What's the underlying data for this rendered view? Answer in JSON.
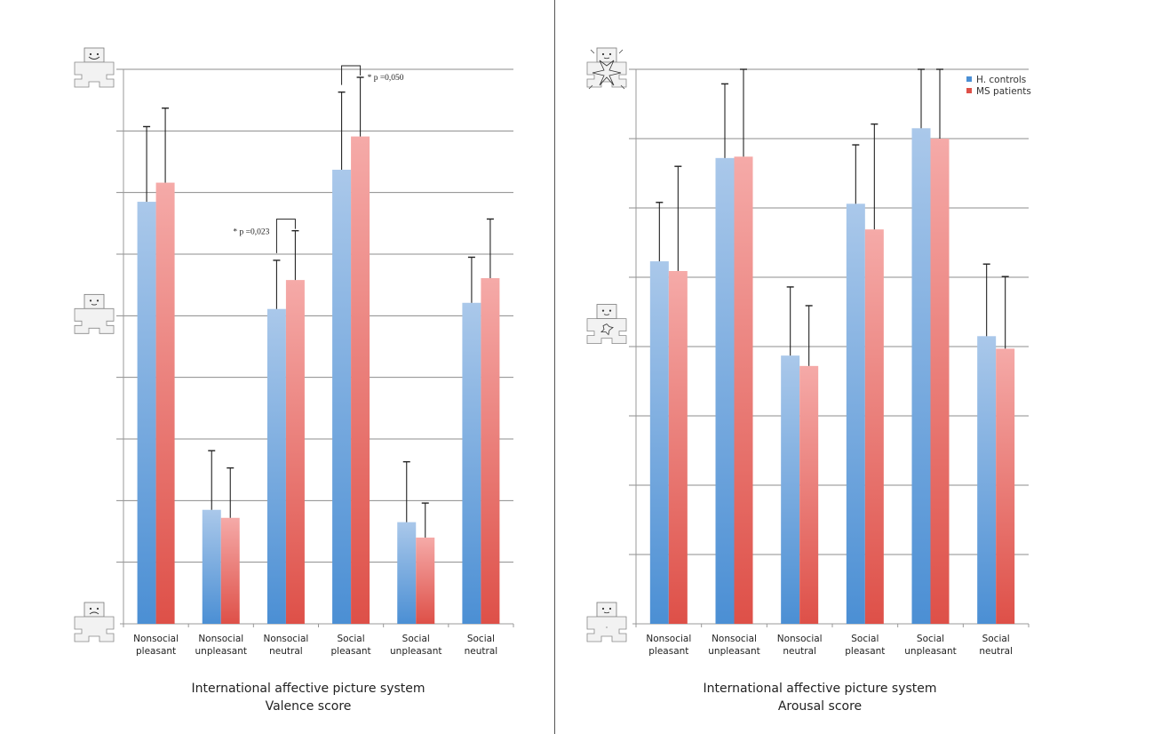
{
  "series_colors": {
    "H. controls": {
      "top": "#aac8ea",
      "bottom": "#4b8fd4"
    },
    "MS patients": {
      "top": "#f5aaa8",
      "bottom": "#de5048"
    }
  },
  "chart_data": [
    {
      "type": "bar",
      "title": "International affective picture system",
      "subtitle": "Valence score",
      "xlabel": "",
      "ylabel": "",
      "ylim": [
        0,
        9
      ],
      "grid": true,
      "y_scale_icons": [
        {
          "value": 9,
          "icon": "sam-manikin-happy-icon"
        },
        {
          "value": 5,
          "icon": "sam-manikin-neutral-icon"
        },
        {
          "value": 0,
          "icon": "sam-manikin-unhappy-icon"
        }
      ],
      "categories": [
        [
          "Nonsocial",
          "pleasant"
        ],
        [
          "Nonsocial",
          "unpleasant"
        ],
        [
          "Nonsocial",
          "neutral"
        ],
        [
          "Social",
          "pleasant"
        ],
        [
          "Social",
          "unpleasant"
        ],
        [
          "Social",
          "neutral"
        ]
      ],
      "series": [
        {
          "name": "H. controls",
          "values": [
            6.85,
            1.85,
            5.11,
            7.37,
            1.65,
            5.21
          ],
          "error_upper": [
            8.07,
            2.81,
            5.9,
            8.63,
            2.63,
            5.95
          ]
        },
        {
          "name": "MS patients",
          "values": [
            7.16,
            1.72,
            5.58,
            7.91,
            1.4,
            5.61
          ],
          "error_upper": [
            8.37,
            2.53,
            6.38,
            8.87,
            1.96,
            6.57
          ]
        }
      ],
      "annotations": [
        {
          "category_index": 2,
          "text": "* p =0,023",
          "side": "left"
        },
        {
          "category_index": 3,
          "text": "* p =0,050",
          "side": "right"
        }
      ],
      "legend": null
    },
    {
      "type": "bar",
      "title": "International affective picture system",
      "subtitle": "Arousal score",
      "xlabel": "",
      "ylabel": "",
      "ylim": [
        1,
        9
      ],
      "grid": true,
      "y_scale_icons": [
        {
          "value": 9,
          "icon": "sam-manikin-excited-icon"
        },
        {
          "value": 5.3,
          "icon": "sam-manikin-medium-arousal-icon"
        },
        {
          "value": 1,
          "icon": "sam-manikin-calm-icon"
        }
      ],
      "categories": [
        [
          "Nonsocial",
          "pleasant"
        ],
        [
          "Nonsocial",
          "unpleasant"
        ],
        [
          "Nonsocial",
          "neutral"
        ],
        [
          "Social",
          "pleasant"
        ],
        [
          "Social",
          "unpleasant"
        ],
        [
          "Social",
          "neutral"
        ]
      ],
      "series": [
        {
          "name": "H. controls",
          "values": [
            6.23,
            7.72,
            4.87,
            7.06,
            8.15,
            5.15
          ],
          "error_upper": [
            7.08,
            8.79,
            5.86,
            7.91,
            9.0,
            6.19
          ]
        },
        {
          "name": "MS patients",
          "values": [
            6.09,
            7.74,
            4.72,
            6.69,
            8.0,
            4.97
          ],
          "error_upper": [
            7.6,
            9.0,
            5.59,
            8.21,
            9.0,
            6.01
          ]
        }
      ],
      "annotations": [],
      "legend": {
        "position": "top-right",
        "entries": [
          "H. controls",
          "MS patients"
        ]
      }
    }
  ]
}
